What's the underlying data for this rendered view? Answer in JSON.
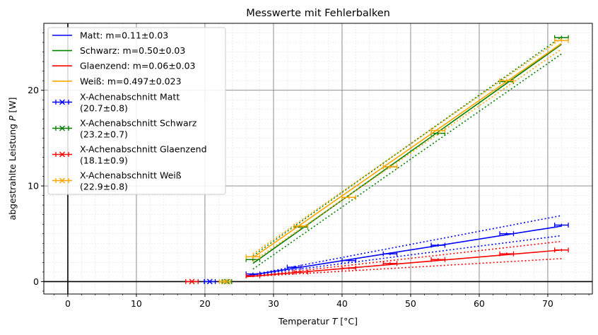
{
  "chart_data": {
    "type": "line",
    "title": "Messwerte mit Fehlerbalken",
    "xlabel": "Temperatur T [°C]",
    "ylabel": "abgestrahlte Leistung P [W]",
    "xlim": [
      -3.5,
      76.5
    ],
    "ylim": [
      -1.3,
      27.0
    ],
    "xticks": [
      0,
      10,
      20,
      30,
      40,
      50,
      60,
      70
    ],
    "yticks": [
      0,
      10,
      20
    ],
    "grid": "major and minor",
    "legend_position": "top-left",
    "series": [
      {
        "name": "Matt: m=0.11±0.03",
        "color": "#0000ff",
        "x": [
          27,
          33,
          41,
          47,
          54,
          64,
          72
        ],
        "y": [
          0.8,
          1.5,
          2.2,
          2.9,
          3.8,
          5.0,
          5.9
        ],
        "xerr": 1.0,
        "yerr": 0.15,
        "fit": {
          "x": [
            26,
            72
          ],
          "y": [
            0.6,
            5.8
          ]
        },
        "fit_bounds": [
          {
            "x": [
              26,
              72
            ],
            "y": [
              0.6,
              6.9
            ]
          },
          {
            "x": [
              26,
              72
            ],
            "y": [
              0.6,
              4.8
            ]
          }
        ]
      },
      {
        "name": "Schwarz: m=0.50±0.03",
        "color": "#008000",
        "x": [
          27,
          34,
          41,
          47,
          54,
          64,
          72
        ],
        "y": [
          2.3,
          5.7,
          8.8,
          12.0,
          15.5,
          20.9,
          25.5
        ],
        "xerr": 1.0,
        "yerr": 0.2,
        "fit": {
          "x": [
            27,
            72
          ],
          "y": [
            1.9,
            24.8
          ]
        },
        "fit_bounds": [
          {
            "x": [
              27,
              72
            ],
            "y": [
              2.7,
              25.6
            ]
          },
          {
            "x": [
              27,
              72
            ],
            "y": [
              1.3,
              23.8
            ]
          }
        ]
      },
      {
        "name": "Glaenzend: m=0.06±0.03",
        "color": "#ff0000",
        "x": [
          27,
          34,
          41,
          47,
          54,
          64,
          72
        ],
        "y": [
          0.6,
          1.0,
          1.4,
          1.9,
          2.3,
          2.9,
          3.3
        ],
        "xerr": 1.0,
        "yerr": 0.15,
        "fit": {
          "x": [
            26,
            72
          ],
          "y": [
            0.5,
            3.3
          ]
        },
        "fit_bounds": [
          {
            "x": [
              26,
              72
            ],
            "y": [
              0.5,
              4.2
            ]
          },
          {
            "x": [
              26,
              72
            ],
            "y": [
              0.5,
              2.4
            ]
          }
        ]
      },
      {
        "name": "Weiß: m=0.497±0.023",
        "color": "#ffa500",
        "x": [
          27,
          34,
          41,
          47,
          54,
          64,
          72
        ],
        "y": [
          2.6,
          5.8,
          8.8,
          12.0,
          15.8,
          21.0,
          25.2
        ],
        "xerr": 1.0,
        "yerr": 0.2,
        "fit": {
          "x": [
            27,
            72
          ],
          "y": [
            2.5,
            24.9
          ]
        },
        "fit_bounds": [
          {
            "x": [
              27,
              72
            ],
            "y": [
              2.9,
              25.4
            ]
          },
          {
            "x": [
              27,
              72
            ],
            "y": [
              2.1,
              24.3
            ]
          }
        ]
      }
    ],
    "intercepts": [
      {
        "name": "X-Achenabschnitt Matt",
        "value_label": "(20.7±0.8)",
        "x": 20.7,
        "xerr": 0.8,
        "color": "#0000ff"
      },
      {
        "name": "X-Achenabschnitt Schwarz",
        "value_label": "(23.2±0.7)",
        "x": 23.2,
        "xerr": 0.7,
        "color": "#008000"
      },
      {
        "name": "X-Achenabschnitt Glaenzend",
        "value_label": "(18.1±0.9)",
        "x": 18.1,
        "xerr": 0.9,
        "color": "#ff0000"
      },
      {
        "name": "X-Achenabschnitt Weiß",
        "value_label": "(22.9±0.8)",
        "x": 22.9,
        "xerr": 0.8,
        "color": "#ffa500"
      }
    ]
  }
}
